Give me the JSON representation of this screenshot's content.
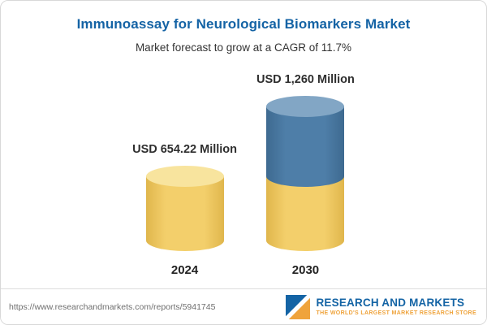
{
  "header": {
    "title": "Immunoassay for Neurological Biomarkers Market",
    "subtitle": "Market forecast to grow at a CAGR of 11.7%"
  },
  "chart_data": {
    "type": "bar",
    "variant": "3d-cylinder-stacked",
    "title": "Immunoassay for Neurological Biomarkers Market",
    "subtitle": "Market forecast to grow at a CAGR of 11.7%",
    "unit": "USD Million",
    "cagr": "11.7%",
    "categories": [
      "2024",
      "2030"
    ],
    "values": [
      654.22,
      1260
    ],
    "value_labels": [
      "USD 654.22 Million",
      "USD 1,260 Million"
    ],
    "ylim": [
      0,
      1260
    ],
    "grid": false,
    "legend": false,
    "bars": [
      {
        "category": "2024",
        "total": 654.22,
        "label": "USD 654.22 Million",
        "segments": [
          {
            "value": 654.22,
            "color": "gold"
          }
        ]
      },
      {
        "category": "2030",
        "total": 1260,
        "label": "USD 1,260 Million",
        "segments": [
          {
            "value": 654.22,
            "color": "gold"
          },
          {
            "value": 605.78,
            "color": "blue"
          }
        ]
      }
    ],
    "palette": {
      "gold": {
        "body": "#F3CF6B",
        "top": "#F8E49E",
        "edge": "#E0B64C"
      },
      "blue": {
        "body": "#4E7EA8",
        "top": "#82A6C5",
        "edge": "#3E6A90"
      }
    }
  },
  "footer": {
    "url": "https://www.researchandmarkets.com/reports/5941745",
    "brand": "RESEARCH AND MARKETS",
    "tagline": "THE WORLD'S LARGEST MARKET RESEARCH STORE",
    "brand_color": "#1464A5",
    "tagline_color": "#EFA33B"
  },
  "theme": {
    "title_color": "#1463A5",
    "subtitle_color": "#333333",
    "label_color": "#2E2E2E",
    "url_color": "#6E6E6E",
    "border_color": "#D8D8D8",
    "background": "#FFFFFF"
  }
}
